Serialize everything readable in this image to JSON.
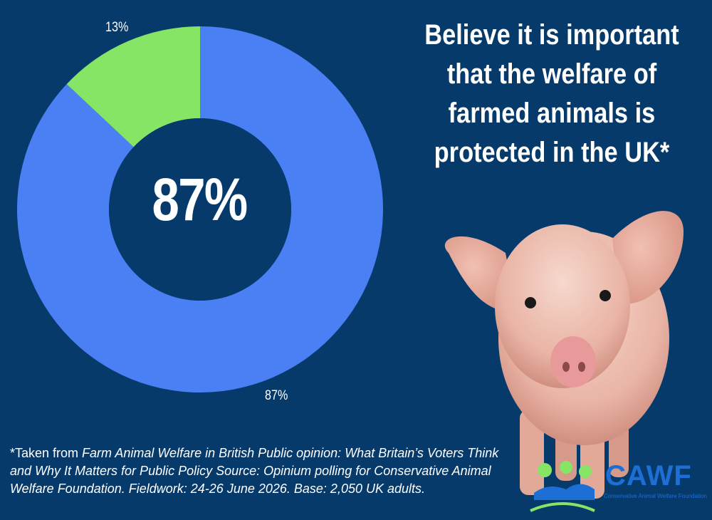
{
  "chart_data": {
    "type": "pie",
    "categories": [
      "",
      ""
    ],
    "values": [
      87,
      13
    ],
    "slice_labels": [
      "87%",
      "13%"
    ],
    "colors": [
      "#4a80f4",
      "#86e564"
    ],
    "center_label": "87%",
    "title": ""
  },
  "headline": {
    "lines": [
      "Believe it is important",
      "that the welfare of",
      "farmed animals is",
      "protected in the UK*"
    ]
  },
  "footnote": {
    "prefix": "*Taken from ",
    "source_title": "Farm Animal Welfare in British Public opinion: What Britain’s Voters Think and Why It Matters for Public Policy Source: Opinium polling for Conservative Animal Welfare Foundation. Fieldwork: 24-26 June 2026. Base: 2,050 UK adults."
  },
  "logo": {
    "text": "CAWF",
    "subtitle": "Conservative Animal Welfare Foundation"
  }
}
